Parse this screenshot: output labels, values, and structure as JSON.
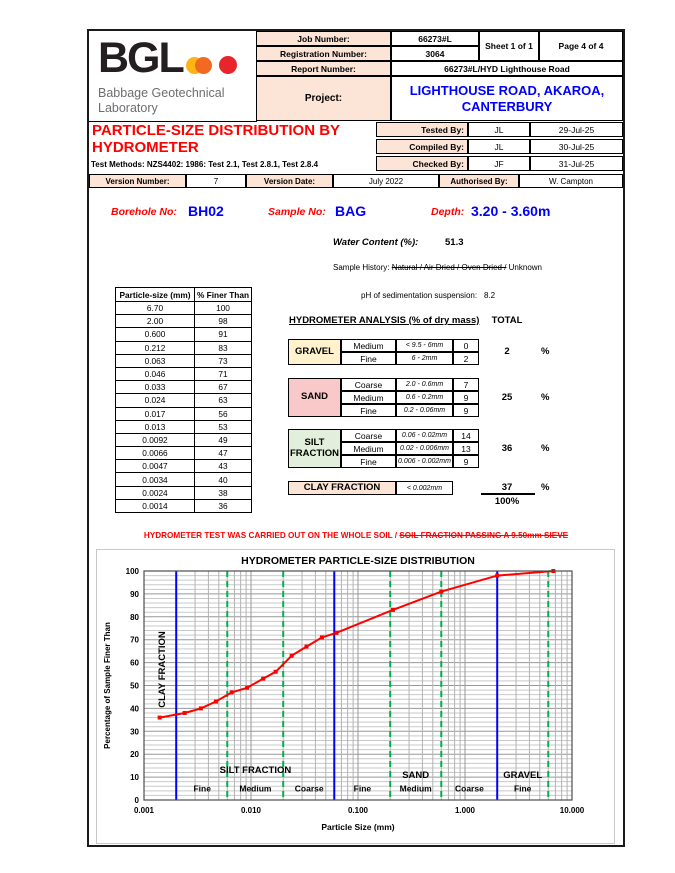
{
  "header": {
    "logo": {
      "text": "BGL",
      "subtitle_line1": "Babbage Geotechnical",
      "subtitle_line2": "Laboratory"
    },
    "fields": [
      {
        "label": "Job Number:",
        "value": "66273#L"
      },
      {
        "label": "Registration Number:",
        "value": "3064"
      },
      {
        "label": "Report Number:",
        "value": "66273#L/HYD Lighthouse Road"
      }
    ],
    "sheet": "Sheet 1 of 1",
    "page": "Page 4 of 4",
    "project_label": "Project:",
    "project_value_line1": "LIGHTHOUSE ROAD, AKAROA,",
    "project_value_line2": "CANTERBURY"
  },
  "title_block": {
    "title_line1": "PARTICLE-SIZE DISTRIBUTION BY",
    "title_line2": "HYDROMETER",
    "test_methods": "Test Methods: NZS4402: 1986: Test 2.1,  Test 2.8.1,  Test 2.8.4",
    "signoff": [
      {
        "label": "Tested By:",
        "initials": "JL",
        "date": "29-Jul-25"
      },
      {
        "label": "Compiled By:",
        "initials": "JL",
        "date": "30-Jul-25"
      },
      {
        "label": "Checked By:",
        "initials": "JF",
        "date": "31-Jul-25"
      }
    ],
    "version": {
      "label": "Version Number:",
      "number": "7",
      "date_label": "Version Date:",
      "date": "July 2022",
      "auth_label": "Authorised By:",
      "auth": "W. Campton"
    }
  },
  "sample": {
    "borehole_label": "Borehole No:",
    "borehole": "BH02",
    "sample_label": "Sample No:",
    "sample": "BAG",
    "depth_label": "Depth:",
    "depth": "3.20 - 3.60m",
    "water_content_label": "Water Content  (%):",
    "water_content": "51.3",
    "history_label": "Sample History:",
    "history_struck": "Natural / Air Dried / Oven Dried /",
    "history_plain": "Unknown",
    "ph_label": "pH of sedimentation suspension:",
    "ph": "8.2"
  },
  "size_table": {
    "headers": [
      "Particle-size (mm)",
      "% Finer Than"
    ],
    "rows": [
      [
        "6.70",
        "100"
      ],
      [
        "2.00",
        "98"
      ],
      [
        "0.600",
        "91"
      ],
      [
        "0.212",
        "83"
      ],
      [
        "0.063",
        "73"
      ],
      [
        "0.046",
        "71"
      ],
      [
        "0.033",
        "67"
      ],
      [
        "0.024",
        "63"
      ],
      [
        "0.017",
        "56"
      ],
      [
        "0.013",
        "53"
      ],
      [
        "0.0092",
        "49"
      ],
      [
        "0.0066",
        "47"
      ],
      [
        "0.0047",
        "43"
      ],
      [
        "0.0034",
        "40"
      ],
      [
        "0.0024",
        "38"
      ],
      [
        "0.0014",
        "36"
      ]
    ]
  },
  "analysis": {
    "heading": "HYDROMETER ANALYSIS  (% of dry mass)",
    "total_label": "TOTAL",
    "groups": [
      {
        "name": "GRAVEL",
        "color": "#FFF2CC",
        "rows": [
          {
            "grade": "Medium",
            "range": "< 9.5 - 6mm",
            "value": "0"
          },
          {
            "grade": "Fine",
            "range": "6 - 2mm",
            "value": "2"
          }
        ],
        "total": "2",
        "unit": "%"
      },
      {
        "name": "SAND",
        "color": "#F9C8C8",
        "rows": [
          {
            "grade": "Coarse",
            "range": "2.0 - 0.6mm",
            "value": "7"
          },
          {
            "grade": "Medium",
            "range": "0.6 - 0.2mm",
            "value": "9"
          },
          {
            "grade": "Fine",
            "range": "0.2 - 0.06mm",
            "value": "9"
          }
        ],
        "total": "25",
        "unit": "%"
      },
      {
        "name": "SILT FRACTION",
        "color": "#E2EFDA",
        "rows": [
          {
            "grade": "Coarse",
            "range": "0.06 - 0.02mm",
            "value": "14"
          },
          {
            "grade": "Medium",
            "range": "0.02 - 0.006mm",
            "value": "13"
          },
          {
            "grade": "Fine",
            "range": "0.006 - 0.002mm",
            "value": "9"
          }
        ],
        "total": "36",
        "unit": "%"
      }
    ],
    "clay": {
      "name": "CLAY FRACTION",
      "color": "#FCE4D6",
      "range": "< 0.002mm",
      "total": "37",
      "unit": "%"
    },
    "grand_total": "100%"
  },
  "warning": {
    "normal": "HYDROMETER TEST WAS CARRIED OUT ON THE WHOLE SOIL / ",
    "struck": "SOIL FRACTION PASSING A 9.50mm SIEVE"
  },
  "chart_data": {
    "type": "line",
    "title": "HYDROMETER PARTICLE-SIZE DISTRIBUTION",
    "xlabel": "Particle Size  (mm)",
    "ylabel": "Percentage of Sample Finer Than",
    "x_scale": "log",
    "xlim": [
      0.001,
      10
    ],
    "ylim": [
      0,
      100
    ],
    "x_tick_labels": [
      "0.001",
      "0.010",
      "0.100",
      "1.000",
      "10.000"
    ],
    "y_tick_step": 10,
    "y_minor_step": 2,
    "grid": true,
    "legend": "none",
    "series": [
      {
        "name": "Percentage finer than",
        "color": "#ff0000",
        "marker": "square",
        "points": [
          [
            0.0014,
            36
          ],
          [
            0.0024,
            38
          ],
          [
            0.0034,
            40
          ],
          [
            0.0047,
            43
          ],
          [
            0.0066,
            47
          ],
          [
            0.0092,
            49
          ],
          [
            0.013,
            53
          ],
          [
            0.017,
            56
          ],
          [
            0.024,
            63
          ],
          [
            0.033,
            67
          ],
          [
            0.046,
            71
          ],
          [
            0.063,
            73
          ],
          [
            0.212,
            83
          ],
          [
            0.6,
            91
          ],
          [
            2.0,
            98
          ],
          [
            6.7,
            100
          ]
        ]
      }
    ],
    "fraction_boundaries": {
      "solid_color": "#0000ff",
      "dashed_color": "#00b050",
      "solid_x": [
        0.002,
        0.06,
        2
      ],
      "dashed_x": [
        0.006,
        0.02,
        0.2,
        0.6,
        6
      ]
    },
    "region_labels": [
      {
        "text": "CLAY FRACTION",
        "x": 0.00148,
        "y": 57,
        "rotate": true
      },
      {
        "text": "SILT FRACTION",
        "x": 0.011,
        "y": 13,
        "rotate": false
      },
      {
        "text": "SAND",
        "x": 0.346,
        "y": 11,
        "rotate": false
      },
      {
        "text": "GRAVEL",
        "x": 3.46,
        "y": 11,
        "rotate": false
      }
    ],
    "sub_labels": [
      {
        "text": "Fine",
        "x": 0.0035
      },
      {
        "text": "Medium",
        "x": 0.011
      },
      {
        "text": "Coarse",
        "x": 0.035
      },
      {
        "text": "Fine",
        "x": 0.11
      },
      {
        "text": "Medium",
        "x": 0.346
      },
      {
        "text": "Coarse",
        "x": 1.1
      },
      {
        "text": "Fine",
        "x": 3.46
      }
    ],
    "sub_label_y": 5
  }
}
